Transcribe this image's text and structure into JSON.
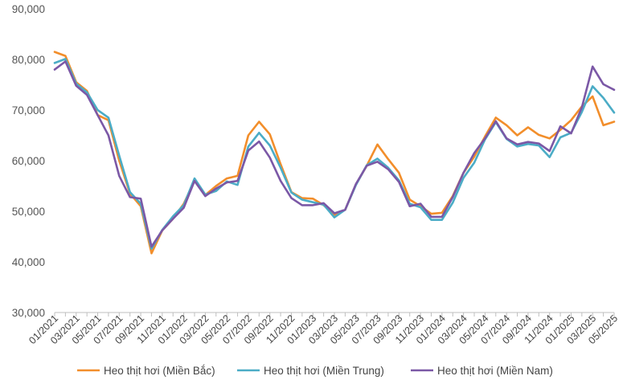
{
  "chart_data": {
    "type": "line",
    "title": "",
    "xlabel": "",
    "ylabel": "",
    "ylim": [
      30000,
      90000
    ],
    "yticks": [
      30000,
      40000,
      50000,
      60000,
      70000,
      80000,
      90000
    ],
    "ytick_labels": [
      "30,000",
      "40,000",
      "50,000",
      "60,000",
      "70,000",
      "80,000",
      "90,000"
    ],
    "grid": false,
    "legend_position": "bottom",
    "x": [
      "01/2021",
      "02/2021",
      "03/2021",
      "04/2021",
      "05/2021",
      "06/2021",
      "07/2021",
      "08/2021",
      "09/2021",
      "10/2021",
      "11/2021",
      "12/2021",
      "01/2022",
      "02/2022",
      "03/2022",
      "04/2022",
      "05/2022",
      "06/2022",
      "07/2022",
      "08/2022",
      "09/2022",
      "10/2022",
      "11/2022",
      "12/2022",
      "01/2023",
      "02/2023",
      "03/2023",
      "04/2023",
      "05/2023",
      "06/2023",
      "07/2023",
      "08/2023",
      "09/2023",
      "10/2023",
      "11/2023",
      "12/2023",
      "01/2024",
      "02/2024",
      "03/2024",
      "04/2024",
      "05/2024",
      "06/2024",
      "07/2024",
      "08/2024",
      "09/2024",
      "10/2024",
      "11/2024",
      "12/2024",
      "01/2025",
      "02/2025",
      "03/2025",
      "04/2025",
      "05/2025"
    ],
    "x_tick_labels": [
      "01/2021",
      "03/2021",
      "05/2021",
      "07/2021",
      "09/2021",
      "11/2021",
      "01/2022",
      "03/2022",
      "05/2022",
      "07/2022",
      "09/2022",
      "11/2022",
      "01/2023",
      "03/2023",
      "05/2023",
      "07/2023",
      "09/2023",
      "11/2023",
      "01/2024",
      "03/2024",
      "05/2024",
      "07/2024",
      "09/2024",
      "11/2024",
      "01/2025",
      "03/2025",
      "05/2025"
    ],
    "series": [
      {
        "name": "Heo thịt hơi (Miền Bắc)",
        "color": "#F28E2B",
        "values": [
          81500,
          80700,
          75500,
          73800,
          69000,
          68000,
          60000,
          53500,
          51000,
          41700,
          46200,
          48500,
          51500,
          56000,
          53200,
          55000,
          56500,
          57000,
          65000,
          67700,
          65200,
          59300,
          53800,
          52600,
          52500,
          51200,
          49300,
          50300,
          55300,
          59000,
          63200,
          60300,
          57600,
          52300,
          51000,
          49500,
          49700,
          53000,
          57600,
          60800,
          64800,
          68500,
          67000,
          65000,
          66600,
          65100,
          64400,
          66100,
          68000,
          70700,
          72700,
          67000,
          67700
        ]
      },
      {
        "name": "Heo thịt hơi (Miền Trung)",
        "color": "#4BACC6",
        "values": [
          79300,
          80100,
          75200,
          73500,
          70000,
          68500,
          61000,
          53800,
          51500,
          42600,
          46300,
          49000,
          51200,
          56500,
          53300,
          54000,
          55900,
          55200,
          62800,
          65500,
          63000,
          58600,
          53700,
          52300,
          51800,
          51300,
          48800,
          50300,
          55200,
          59100,
          60400,
          58600,
          56100,
          51500,
          50800,
          48300,
          48300,
          51700,
          56600,
          59600,
          64200,
          67600,
          64300,
          62800,
          63300,
          63000,
          60700,
          64600,
          65500,
          69600,
          74700,
          72400,
          69500
        ]
      },
      {
        "name": "Heo thịt hơi (Miền Nam)",
        "color": "#7B58A6",
        "values": [
          78000,
          79600,
          74800,
          73000,
          69000,
          65000,
          57000,
          52800,
          52500,
          43000,
          46200,
          48500,
          50700,
          56000,
          53000,
          54500,
          55700,
          56000,
          62000,
          63800,
          60600,
          56000,
          52600,
          51200,
          51200,
          51600,
          49600,
          50300,
          55400,
          59000,
          59800,
          58300,
          55800,
          51000,
          51500,
          48900,
          48900,
          52800,
          57600,
          61500,
          64400,
          67800,
          64400,
          63200,
          63700,
          63400,
          61900,
          66800,
          65400,
          70500,
          78600,
          75100,
          74000
        ]
      }
    ]
  }
}
